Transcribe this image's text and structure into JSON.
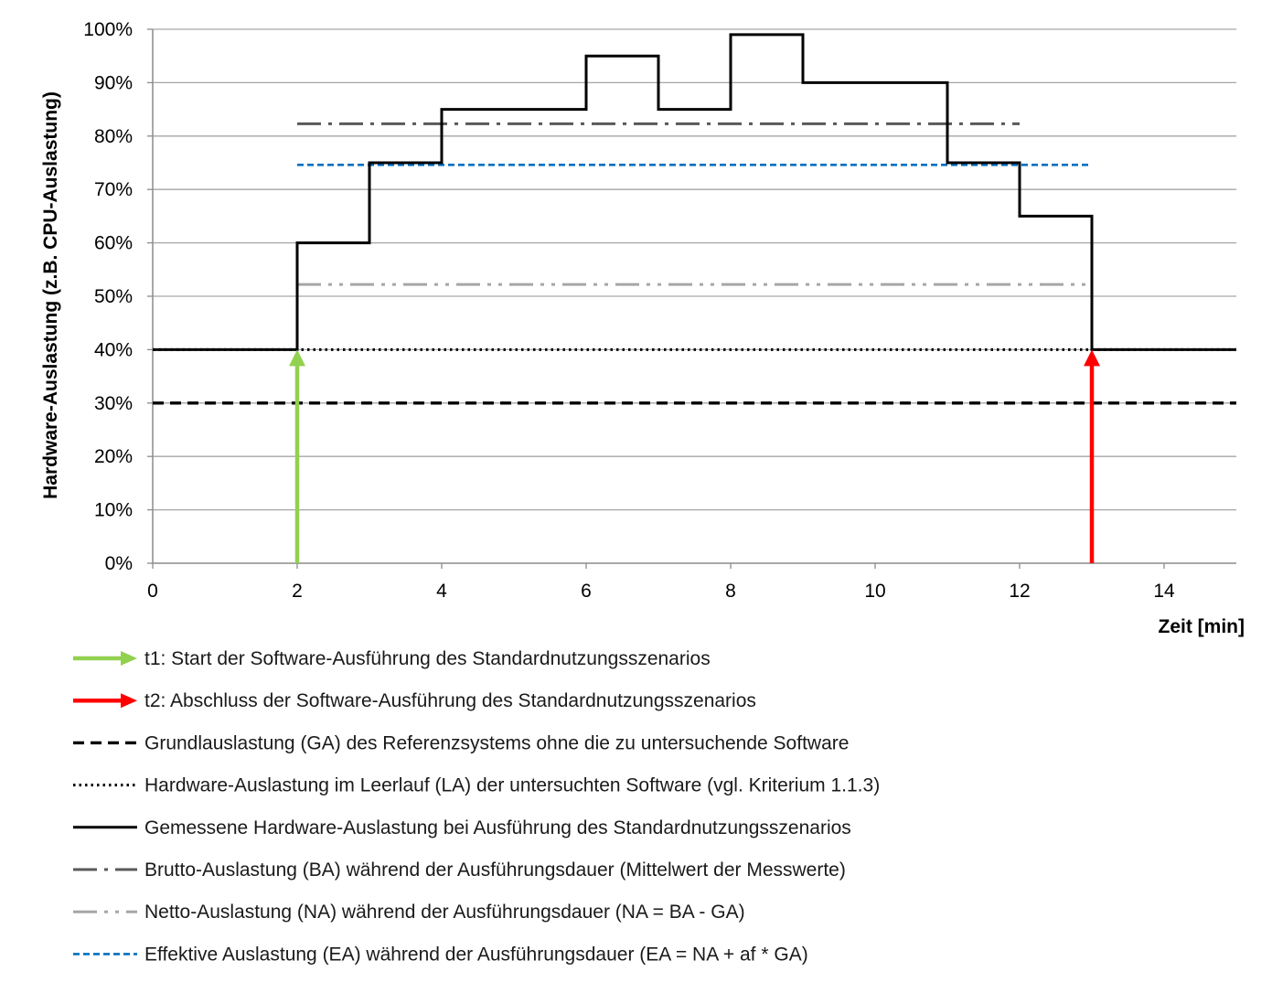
{
  "chart_data": {
    "type": "line",
    "xlabel": "Zeit [min]",
    "ylabel": "Hardware-Auslastung (z.B. CPU-Auslastung)",
    "xlim": [
      0,
      15
    ],
    "ylim": [
      0,
      100
    ],
    "x_ticks": [
      0,
      2,
      4,
      6,
      8,
      10,
      12,
      14
    ],
    "y_ticks": [
      "0%",
      "10%",
      "20%",
      "30%",
      "40%",
      "50%",
      "60%",
      "70%",
      "80%",
      "90%",
      "100%"
    ],
    "grid": "horizontal",
    "colors": {
      "start_arrow": "#92d050",
      "end_arrow": "#ff0000",
      "measured": "#000000",
      "brutto": "#595959",
      "netto": "#a6a6a6",
      "effektiv": "#0070c0",
      "grid": "#a6a6a6"
    },
    "measured_step": {
      "x": [
        0,
        2,
        2,
        3,
        3,
        4,
        4,
        6,
        6,
        7,
        7,
        8,
        8,
        9,
        9,
        11,
        11,
        12,
        12,
        13,
        13,
        15
      ],
      "y": [
        40,
        40,
        60,
        60,
        75,
        75,
        85,
        85,
        95,
        95,
        85,
        85,
        99,
        99,
        90,
        90,
        75,
        75,
        65,
        65,
        40,
        40
      ]
    },
    "reference_lines": [
      {
        "id": "ga",
        "y": 30,
        "x": [
          0,
          15
        ]
      },
      {
        "id": "la",
        "y": 40,
        "x": [
          0,
          15
        ]
      },
      {
        "id": "ba",
        "y": 82.3,
        "x": [
          2,
          12
        ]
      },
      {
        "id": "na",
        "y": 52.2,
        "x": [
          2,
          13
        ]
      },
      {
        "id": "ea",
        "y": 74.6,
        "x": [
          2,
          13
        ]
      }
    ],
    "arrows": [
      {
        "id": "t1",
        "x": 2,
        "y_from": 0,
        "y_to": 40
      },
      {
        "id": "t2",
        "x": 13,
        "y_from": 0,
        "y_to": 40
      }
    ],
    "legend": [
      {
        "key": "t1",
        "label": "t1: Start der Software-Ausführung des Standardnutzungsszenarios"
      },
      {
        "key": "t2",
        "label": "t2: Abschluss der Software-Ausführung des Standardnutzungsszenarios"
      },
      {
        "key": "ga",
        "label": "Grundlauslastung (GA) des Referenzsystems ohne die zu untersuchende Software"
      },
      {
        "key": "la",
        "label": "Hardware-Auslastung im Leerlauf (LA) der untersuchten Software (vgl. Kriterium 1.1.3)"
      },
      {
        "key": "measured",
        "label": "Gemessene Hardware-Auslastung bei Ausführung des Standardnutzungsszenarios"
      },
      {
        "key": "ba",
        "label": "Brutto-Auslastung (BA) während der Ausführungsdauer (Mittelwert der Messwerte)"
      },
      {
        "key": "na",
        "label": "Netto-Auslastung (NA) während der Ausführungsdauer (NA = BA - GA)"
      },
      {
        "key": "ea",
        "label": "Effektive Auslastung (EA) während der Ausführungsdauer (EA = NA + af * GA)"
      }
    ]
  }
}
